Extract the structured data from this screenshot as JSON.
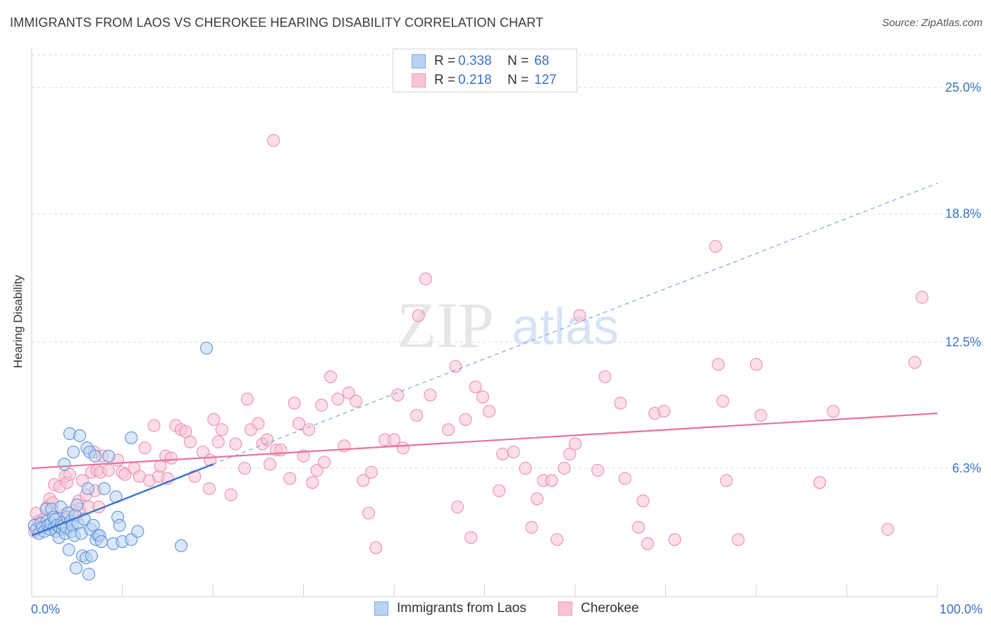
{
  "header": {
    "title": "IMMIGRANTS FROM LAOS VS CHEROKEE HEARING DISABILITY CORRELATION CHART",
    "source": "Source: ZipAtlas.com"
  },
  "watermark": {
    "zip": "ZIP",
    "atlas": "atlas"
  },
  "legend": {
    "rows": [
      {
        "r_label": "R =",
        "r_value": "0.338",
        "n_label": "N =",
        "n_value": "68",
        "fill": "#b9d3f3",
        "stroke": "#7aa6df"
      },
      {
        "r_label": "R =",
        "r_value": "0.218",
        "n_label": "N =",
        "n_value": "127",
        "fill": "#f9c3d4",
        "stroke": "#ee9ab6"
      }
    ]
  },
  "bottom_legend": [
    {
      "label": "Immigrants from Laos",
      "fill": "#b9d3f3",
      "stroke": "#7aa6df"
    },
    {
      "label": "Cherokee",
      "fill": "#f9c3d4",
      "stroke": "#ee9ab6"
    }
  ],
  "chart_data": {
    "type": "scatter",
    "title": "IMMIGRANTS FROM LAOS VS CHEROKEE HEARING DISABILITY CORRELATION CHART",
    "xlabel": "",
    "ylabel": "Hearing Disability",
    "xlim": [
      0,
      100
    ],
    "ylim": [
      0,
      26.6
    ],
    "x_tick_labels": [
      "0.0%",
      "100.0%"
    ],
    "y_ticks": [
      6.3,
      12.5,
      18.8,
      25.0
    ],
    "y_tick_labels": [
      "6.3%",
      "12.5%",
      "18.8%",
      "25.0%"
    ],
    "grid": true,
    "legend_position": "top-center",
    "colors": {
      "blue": "#3a72c8",
      "pink": "#e8729b",
      "blue_fill": "#b9d3f3",
      "pink_fill": "#f9c3d4"
    },
    "series": [
      {
        "name": "Immigrants from Laos",
        "color": "#3a72c8",
        "fill": "#b9d3f3",
        "trend": {
          "x": [
            0,
            20
          ],
          "y": [
            3.0,
            6.5
          ],
          "style": "solid"
        },
        "trend_extension": {
          "x": [
            20,
            100
          ],
          "y": [
            6.5,
            20.3
          ],
          "style": "dashed"
        },
        "points": [
          [
            0.3,
            3.5
          ],
          [
            0.5,
            3.3
          ],
          [
            0.8,
            3.1
          ],
          [
            1.0,
            3.6
          ],
          [
            1.2,
            3.4
          ],
          [
            1.4,
            3.2
          ],
          [
            1.6,
            4.3
          ],
          [
            1.7,
            3.7
          ],
          [
            1.8,
            3.5
          ],
          [
            2.0,
            3.3
          ],
          [
            2.1,
            3.6
          ],
          [
            2.2,
            4.3
          ],
          [
            2.4,
            3.9
          ],
          [
            2.5,
            3.4
          ],
          [
            2.6,
            3.8
          ],
          [
            2.7,
            3.2
          ],
          [
            2.8,
            3.5
          ],
          [
            3.0,
            2.9
          ],
          [
            3.1,
            3.4
          ],
          [
            3.2,
            4.4
          ],
          [
            3.3,
            3.6
          ],
          [
            3.4,
            3.3
          ],
          [
            3.5,
            3.5
          ],
          [
            3.6,
            6.5
          ],
          [
            3.7,
            3.1
          ],
          [
            3.8,
            3.4
          ],
          [
            3.9,
            3.9
          ],
          [
            4.0,
            4.1
          ],
          [
            4.1,
            2.3
          ],
          [
            4.2,
            8.0
          ],
          [
            4.3,
            3.7
          ],
          [
            4.4,
            3.2
          ],
          [
            4.5,
            3.5
          ],
          [
            4.6,
            7.1
          ],
          [
            4.7,
            3.0
          ],
          [
            4.8,
            4.0
          ],
          [
            4.9,
            1.4
          ],
          [
            5.0,
            4.5
          ],
          [
            5.1,
            3.6
          ],
          [
            5.3,
            7.9
          ],
          [
            5.5,
            3.1
          ],
          [
            5.6,
            2.0
          ],
          [
            5.8,
            3.8
          ],
          [
            6.0,
            1.9
          ],
          [
            6.1,
            7.3
          ],
          [
            6.2,
            5.3
          ],
          [
            6.3,
            1.1
          ],
          [
            6.4,
            7.1
          ],
          [
            6.5,
            3.3
          ],
          [
            6.6,
            2.0
          ],
          [
            6.8,
            3.5
          ],
          [
            7.0,
            6.9
          ],
          [
            7.1,
            2.8
          ],
          [
            7.3,
            3.0
          ],
          [
            7.5,
            3.0
          ],
          [
            7.7,
            2.7
          ],
          [
            8.0,
            5.3
          ],
          [
            8.5,
            6.9
          ],
          [
            9.0,
            2.6
          ],
          [
            9.3,
            4.9
          ],
          [
            9.5,
            3.9
          ],
          [
            9.7,
            3.5
          ],
          [
            10.0,
            2.7
          ],
          [
            11.0,
            2.8
          ],
          [
            11.0,
            7.8
          ],
          [
            11.7,
            3.2
          ],
          [
            16.5,
            2.5
          ],
          [
            19.3,
            12.2
          ]
        ]
      },
      {
        "name": "Cherokee",
        "color": "#e8729b",
        "fill": "#f9c3d4",
        "trend": {
          "x": [
            0,
            100
          ],
          "y": [
            6.3,
            9.0
          ],
          "style": "solid"
        },
        "points": [
          [
            0.3,
            3.2
          ],
          [
            0.5,
            4.1
          ],
          [
            0.8,
            3.7
          ],
          [
            1.0,
            3.4
          ],
          [
            1.3,
            3.8
          ],
          [
            1.7,
            4.4
          ],
          [
            2.0,
            4.8
          ],
          [
            2.3,
            4.6
          ],
          [
            2.5,
            5.5
          ],
          [
            2.8,
            3.4
          ],
          [
            3.0,
            3.8
          ],
          [
            3.1,
            5.4
          ],
          [
            3.5,
            4.0
          ],
          [
            3.7,
            5.9
          ],
          [
            3.9,
            5.6
          ],
          [
            4.2,
            6.0
          ],
          [
            4.5,
            4.2
          ],
          [
            5.2,
            4.7
          ],
          [
            5.3,
            4.3
          ],
          [
            5.6,
            5.7
          ],
          [
            6.0,
            5.0
          ],
          [
            6.3,
            4.4
          ],
          [
            6.6,
            6.1
          ],
          [
            6.9,
            7.1
          ],
          [
            7.0,
            5.2
          ],
          [
            7.2,
            6.2
          ],
          [
            7.4,
            4.4
          ],
          [
            7.6,
            6.1
          ],
          [
            7.8,
            6.9
          ],
          [
            8.5,
            6.2
          ],
          [
            9.5,
            6.7
          ],
          [
            10.0,
            6.1
          ],
          [
            10.3,
            6.0
          ],
          [
            11.3,
            6.3
          ],
          [
            11.9,
            5.9
          ],
          [
            12.5,
            7.3
          ],
          [
            13.0,
            5.7
          ],
          [
            13.5,
            8.4
          ],
          [
            14.0,
            5.9
          ],
          [
            14.2,
            6.4
          ],
          [
            14.8,
            6.9
          ],
          [
            15.0,
            5.8
          ],
          [
            15.4,
            6.8
          ],
          [
            15.9,
            8.4
          ],
          [
            16.5,
            8.2
          ],
          [
            17.0,
            8.1
          ],
          [
            17.5,
            7.6
          ],
          [
            18.0,
            5.9
          ],
          [
            18.9,
            7.1
          ],
          [
            19.6,
            5.3
          ],
          [
            19.7,
            6.7
          ],
          [
            20.1,
            8.7
          ],
          [
            20.6,
            7.6
          ],
          [
            21.0,
            8.2
          ],
          [
            22.0,
            5.0
          ],
          [
            22.5,
            7.5
          ],
          [
            23.5,
            6.3
          ],
          [
            23.8,
            9.7
          ],
          [
            24.2,
            8.2
          ],
          [
            25.0,
            8.5
          ],
          [
            25.5,
            7.5
          ],
          [
            26.0,
            7.7
          ],
          [
            26.3,
            6.5
          ],
          [
            26.7,
            22.4
          ],
          [
            27.0,
            7.2
          ],
          [
            27.5,
            7.2
          ],
          [
            28.5,
            5.8
          ],
          [
            29.0,
            9.5
          ],
          [
            29.5,
            8.5
          ],
          [
            30.0,
            6.9
          ],
          [
            30.6,
            8.2
          ],
          [
            31.0,
            5.6
          ],
          [
            31.5,
            6.2
          ],
          [
            32.0,
            9.4
          ],
          [
            32.3,
            6.6
          ],
          [
            33.0,
            10.8
          ],
          [
            33.8,
            9.7
          ],
          [
            34.5,
            7.4
          ],
          [
            35.0,
            10.0
          ],
          [
            35.8,
            9.6
          ],
          [
            36.6,
            5.7
          ],
          [
            37.2,
            4.1
          ],
          [
            37.5,
            6.1
          ],
          [
            38.0,
            2.4
          ],
          [
            39.0,
            7.7
          ],
          [
            40.0,
            7.7
          ],
          [
            40.4,
            9.9
          ],
          [
            41.0,
            7.3
          ],
          [
            42.5,
            8.9
          ],
          [
            42.7,
            13.8
          ],
          [
            43.5,
            15.6
          ],
          [
            44.0,
            9.9
          ],
          [
            46.0,
            8.2
          ],
          [
            46.8,
            11.3
          ],
          [
            47.0,
            4.4
          ],
          [
            47.9,
            8.7
          ],
          [
            48.5,
            2.9
          ],
          [
            49.0,
            10.3
          ],
          [
            49.8,
            9.8
          ],
          [
            50.5,
            9.1
          ],
          [
            51.6,
            5.2
          ],
          [
            52.0,
            7.0
          ],
          [
            53.2,
            7.1
          ],
          [
            54.5,
            6.3
          ],
          [
            55.2,
            3.4
          ],
          [
            55.8,
            4.8
          ],
          [
            56.5,
            5.7
          ],
          [
            57.4,
            5.7
          ],
          [
            58.0,
            2.8
          ],
          [
            58.8,
            6.3
          ],
          [
            59.4,
            7.0
          ],
          [
            60.0,
            7.5
          ],
          [
            60.5,
            13.8
          ],
          [
            62.5,
            6.2
          ],
          [
            63.3,
            10.8
          ],
          [
            65.0,
            9.5
          ],
          [
            65.5,
            5.8
          ],
          [
            67.0,
            3.4
          ],
          [
            67.5,
            4.7
          ],
          [
            68.0,
            2.6
          ],
          [
            68.8,
            9.0
          ],
          [
            69.8,
            9.1
          ],
          [
            71.0,
            2.8
          ],
          [
            75.5,
            17.2
          ],
          [
            75.8,
            11.4
          ],
          [
            76.3,
            9.6
          ],
          [
            76.7,
            5.7
          ],
          [
            78.0,
            2.8
          ],
          [
            80.0,
            11.4
          ],
          [
            80.5,
            8.9
          ],
          [
            87.0,
            5.6
          ],
          [
            88.5,
            9.1
          ],
          [
            94.5,
            3.3
          ],
          [
            97.5,
            11.5
          ],
          [
            98.3,
            14.7
          ]
        ]
      }
    ]
  }
}
